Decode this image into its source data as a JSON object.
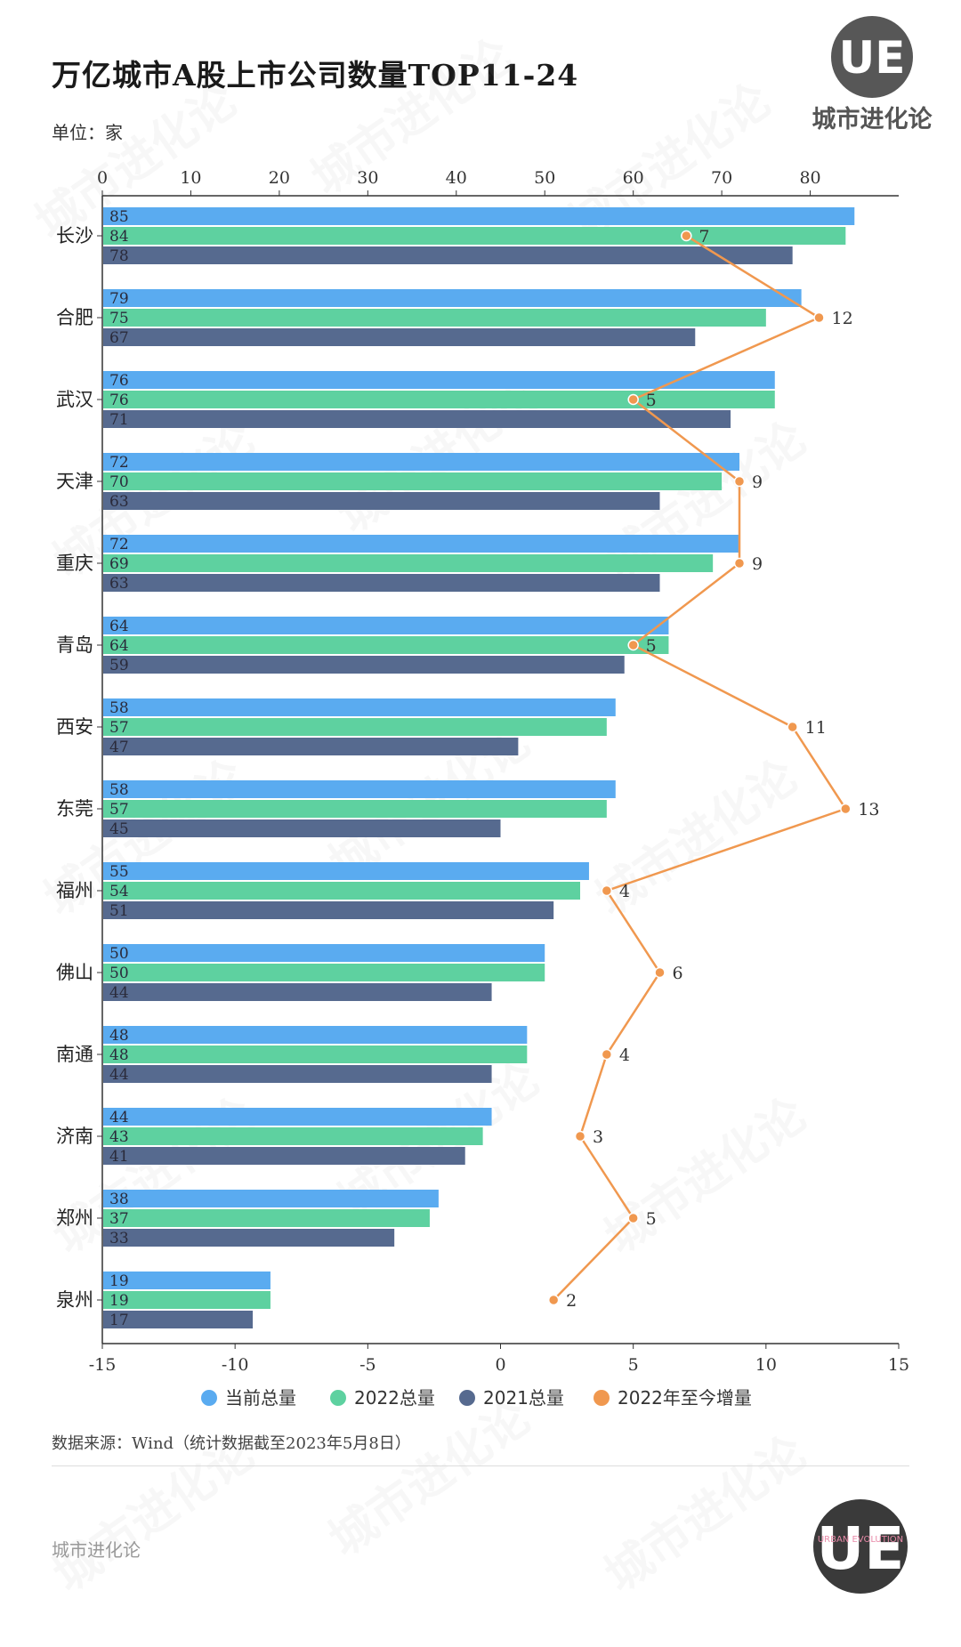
{
  "title": "万亿城市A股上市公司数量TOP11-24",
  "unit": "单位：家",
  "brand": {
    "logo_letters": "UE",
    "name": "城市进化论",
    "watermark_en": "URBAN EVOLUTION"
  },
  "source": "数据来源：Wind（统计数据截至2023年5月8日）",
  "footer": "城市进化论",
  "colors": {
    "current": "#5aabf0",
    "y2022": "#5ed1a0",
    "y2021": "#566a8f",
    "increase": "#f0984f"
  },
  "chart_data": {
    "type": "bar",
    "orientation": "horizontal",
    "categories": [
      "长沙",
      "合肥",
      "武汉",
      "天津",
      "重庆",
      "青岛",
      "西安",
      "东莞",
      "福州",
      "佛山",
      "南通",
      "济南",
      "郑州",
      "泉州"
    ],
    "series": [
      {
        "name": "当前总量",
        "type": "bar",
        "values": [
          85,
          79,
          76,
          72,
          72,
          64,
          58,
          58,
          55,
          50,
          48,
          44,
          38,
          19
        ]
      },
      {
        "name": "2022总量",
        "type": "bar",
        "values": [
          84,
          75,
          76,
          70,
          69,
          64,
          57,
          57,
          54,
          50,
          48,
          43,
          37,
          19
        ]
      },
      {
        "name": "2021总量",
        "type": "bar",
        "values": [
          78,
          67,
          71,
          63,
          63,
          59,
          47,
          45,
          51,
          44,
          44,
          41,
          33,
          17
        ]
      },
      {
        "name": "2022年至今增量",
        "type": "line",
        "axis": "bottom",
        "values": [
          7,
          12,
          5,
          9,
          9,
          5,
          11,
          13,
          4,
          6,
          4,
          3,
          5,
          2
        ]
      }
    ],
    "top_axis": {
      "min": 0,
      "max": 90,
      "ticks": [
        0,
        10,
        20,
        30,
        40,
        50,
        60,
        70,
        80
      ]
    },
    "bottom_axis": {
      "min": -15,
      "max": 15,
      "ticks": [
        -15,
        -10,
        -5,
        0,
        5,
        10,
        15
      ]
    },
    "legend_position": "bottom",
    "grid": false
  }
}
